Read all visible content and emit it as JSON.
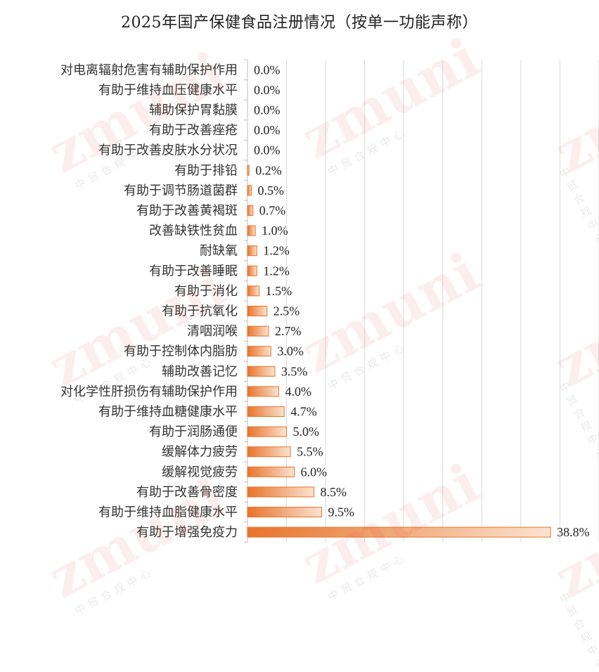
{
  "chart_data": {
    "type": "bar",
    "orientation": "horizontal",
    "title": "2025年国产保健食品注册情况（按单一功能声称）",
    "categories": [
      "对电离辐射危害有辅助保护作用",
      "有助于维持血压健康水平",
      "辅助保护胃黏膜",
      "有助于改善痤疮",
      "有助于改善皮肤水分状况",
      "有助于排铅",
      "有助于调节肠道菌群",
      "有助于改善黄褐斑",
      "改善缺铁性贫血",
      "耐缺氧",
      "有助于改善睡眠",
      "有助于消化",
      "有助于抗氧化",
      "清咽润喉",
      "有助于控制体内脂肪",
      "辅助改善记忆",
      "对化学性肝损伤有辅助保护作用",
      "有助于维持血糖健康水平",
      "有助于润肠通便",
      "缓解体力疲劳",
      "缓解视觉疲劳",
      "有助于改善骨密度",
      "有助于维持血脂健康水平",
      "有助于增强免疫力"
    ],
    "values": [
      0.0,
      0.0,
      0.0,
      0.0,
      0.0,
      0.2,
      0.5,
      0.7,
      1.0,
      1.2,
      1.2,
      1.5,
      2.5,
      2.7,
      3.0,
      3.5,
      4.0,
      4.7,
      5.0,
      5.5,
      6.0,
      8.5,
      9.5,
      38.8
    ],
    "value_labels": [
      "0.0%",
      "0.0%",
      "0.0%",
      "0.0%",
      "0.0%",
      "0.2%",
      "0.5%",
      "0.7%",
      "1.0%",
      "1.2%",
      "1.2%",
      "1.5%",
      "2.5%",
      "2.7%",
      "3.0%",
      "3.5%",
      "4.0%",
      "4.7%",
      "5.0%",
      "5.5%",
      "6.0%",
      "8.5%",
      "9.5%",
      "38.8%"
    ],
    "unit": "%",
    "xlim": [
      0,
      45
    ],
    "grid": true,
    "bar_color": "#e8732a",
    "bar_color_light": "#fbe3d0",
    "grid_color": "#d9d9d9"
  },
  "watermark": {
    "brand": "zmuni",
    "sub": "中贸合规中心",
    "color": "#dc4646"
  }
}
